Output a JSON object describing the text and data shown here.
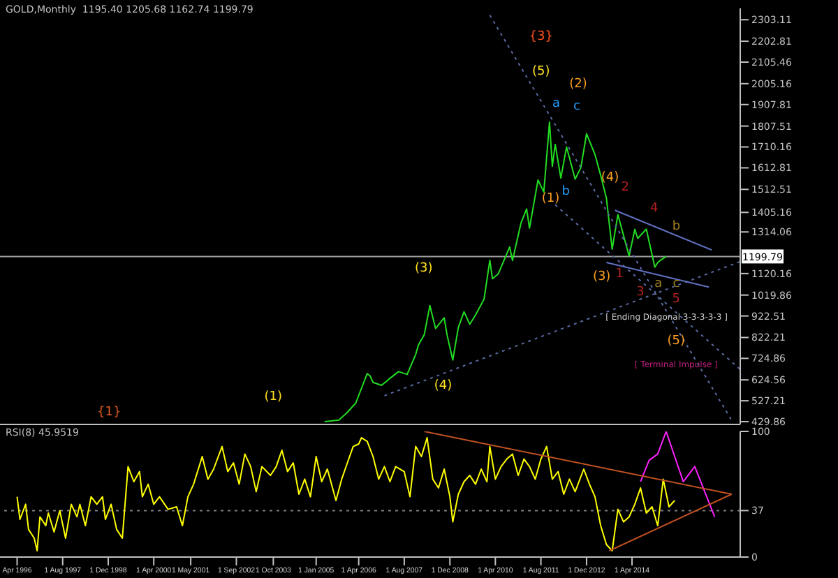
{
  "chart_data": [
    {
      "type": "line",
      "title": "GOLD,Monthly  1195.40 1205.68 1162.74 1199.79",
      "xlim": [
        "1995-10",
        "2017-06"
      ],
      "ylim": [
        417,
        2356
      ],
      "tick_labels": "y",
      "yticks": [
        2303.11,
        2202.81,
        2105.46,
        2005.16,
        1907.81,
        1807.51,
        1710.16,
        1612.81,
        1512.51,
        1405.16,
        1314.06,
        1120.16,
        1019.86,
        922.51,
        822.21,
        724.86,
        624.56,
        527.21,
        429.86
      ],
      "series": [
        {
          "color": "#22dd22",
          "x": [
            "2005-04",
            "2005-09",
            "2005-12",
            "2006-03",
            "2006-07",
            "2006-08",
            "2006-09",
            "2006-12",
            "2007-03",
            "2007-06",
            "2007-09",
            "2007-12",
            "2008-01",
            "2008-03",
            "2008-05",
            "2008-06",
            "2008-07",
            "2008-10",
            "2008-11",
            "2009-01",
            "2009-03",
            "2009-05",
            "2009-07",
            "2009-09",
            "2009-12",
            "2010-02",
            "2010-03",
            "2010-05",
            "2010-09",
            "2010-10",
            "2011-01",
            "2011-03",
            "2011-04",
            "2011-07",
            "2011-09",
            "2011-11",
            "2011-12",
            "2012-01",
            "2012-03",
            "2012-05",
            "2012-08",
            "2012-10",
            "2012-12",
            "2013-03",
            "2013-05",
            "2013-07",
            "2013-09",
            "2013-11",
            "2014-03",
            "2014-05",
            "2014-06",
            "2014-09",
            "2014-12",
            "2015-01",
            "2015-02",
            "2015-04"
          ],
          "values": [
            430,
            437,
            473,
            517,
            654,
            643,
            613,
            599,
            632,
            663,
            650,
            743,
            789,
            834,
            971,
            916,
            864,
            914,
            833,
            717,
            869,
            942,
            884,
            927,
            1001,
            1182,
            1096,
            1118,
            1244,
            1181,
            1357,
            1421,
            1332,
            1556,
            1500,
            1826,
            1620,
            1722,
            1565,
            1710,
            1560,
            1614,
            1772,
            1675,
            1578,
            1472,
            1234,
            1395,
            1202,
            1326,
            1284,
            1327,
            1150,
            1171,
            1183,
            1200
          ]
        },
        {
          "type": "line",
          "color": "#5a6aa0",
          "line_style": "dotted",
          "x": [
            "2007-01",
            "2017-06"
          ],
          "values": [
            551,
            1176
          ]
        },
        {
          "type": "line",
          "color": "#5a6aa0",
          "line_style": "dotted",
          "x": [
            "2010-02",
            "2017-03"
          ],
          "values": [
            2324,
            436
          ]
        },
        {
          "type": "line",
          "color": "#5a6aa0",
          "line_style": "dotted",
          "x": [
            "2012-01",
            "2017-06"
          ],
          "values": [
            1441,
            673
          ]
        },
        {
          "type": "line",
          "color": "#6070c0",
          "line_style": "solid",
          "x": [
            "2013-10",
            "2016-08"
          ],
          "values": [
            1415,
            1230
          ]
        },
        {
          "type": "line",
          "color": "#6070c0",
          "line_style": "solid",
          "x": [
            "2013-07",
            "2016-07"
          ],
          "values": [
            1172,
            1057
          ]
        }
      ],
      "ref_lines": [
        {
          "axis": "y",
          "value": 1199.79,
          "label": "1199.79",
          "color": "#a0a0a0",
          "line_style": "solid"
        }
      ],
      "annotations": [
        "{1}",
        "(1)",
        "(3)",
        "(4)",
        "(5)",
        "{3}",
        "(2)",
        "a",
        "c",
        "b",
        "(1)",
        "(4)",
        "2",
        "4",
        "b",
        "(3)",
        "1",
        "3",
        "a",
        "c",
        "5",
        "[ Ending Diagonal 3-3-3-3-3 ]",
        "(5)",
        "[ Terminal Impulse ]"
      ]
    },
    {
      "type": "line",
      "title": "RSI(8) 45.9519",
      "xlim": [
        "1995-10",
        "2017-06"
      ],
      "ylim": [
        0,
        100
      ],
      "yticks": [
        0,
        37,
        100
      ],
      "xticks": [
        {
          "value": "1996-04",
          "label": "Apr 1996"
        },
        {
          "value": "1997-08",
          "label": "1 Aug 1997"
        },
        {
          "value": "1998-12",
          "label": "1 Dec 1998"
        },
        {
          "value": "2000-04",
          "label": "1 Apr 2000"
        },
        {
          "value": "2001-05",
          "label": "1 May 2001"
        },
        {
          "value": "2002-09",
          "label": "1 Sep 2002"
        },
        {
          "value": "2003-10",
          "label": "1 Oct 2003"
        },
        {
          "value": "2005-01",
          "label": "1 Jan 2005"
        },
        {
          "value": "2006-04",
          "label": "1 Apr 2006"
        },
        {
          "value": "2007-08",
          "label": "1 Aug 2007"
        },
        {
          "value": "2008-12",
          "label": "1 Dec 2008"
        },
        {
          "value": "2010-04",
          "label": "1 Apr 2010"
        },
        {
          "value": "2011-08",
          "label": "1 Aug 2011"
        },
        {
          "value": "2012-12",
          "label": "1 Dec 2012"
        },
        {
          "value": "2014-04",
          "label": "1 Apr 2014"
        }
      ],
      "series": [
        {
          "color": "#ffff00",
          "x": [
            "1996-04",
            "1996-05",
            "1996-07",
            "1996-08",
            "1996-10",
            "1996-11",
            "1996-12",
            "1997-02",
            "1997-03",
            "1997-05",
            "1997-07",
            "1997-09",
            "1997-11",
            "1998-01",
            "1998-02",
            "1998-04",
            "1998-06",
            "1998-08",
            "1998-10",
            "1998-11",
            "1999-01",
            "1999-03",
            "1999-05",
            "1999-07",
            "1999-09",
            "1999-11",
            "1999-12",
            "2000-02",
            "2000-04",
            "2000-06",
            "2000-09",
            "2000-12",
            "2001-02",
            "2001-04",
            "2001-06",
            "2001-09",
            "2001-11",
            "2002-01",
            "2002-04",
            "2002-06",
            "2002-08",
            "2002-10",
            "2002-12",
            "2003-02",
            "2003-04",
            "2003-06",
            "2003-09",
            "2003-11",
            "2004-01",
            "2004-03",
            "2004-05",
            "2004-07",
            "2004-09",
            "2004-11",
            "2005-01",
            "2005-03",
            "2005-05",
            "2005-08",
            "2005-10",
            "2005-12",
            "2006-02",
            "2006-04",
            "2006-05",
            "2006-07",
            "2006-09",
            "2006-11",
            "2007-01",
            "2007-03",
            "2007-05",
            "2007-08",
            "2007-10",
            "2007-12",
            "2008-02",
            "2008-04",
            "2008-06",
            "2008-08",
            "2008-10",
            "2008-12",
            "2009-01",
            "2009-03",
            "2009-05",
            "2009-07",
            "2009-09",
            "2009-11",
            "2010-01",
            "2010-02",
            "2010-04",
            "2010-06",
            "2010-08",
            "2010-10",
            "2010-12",
            "2011-02",
            "2011-04",
            "2011-06",
            "2011-08",
            "2011-10",
            "2011-12",
            "2012-02",
            "2012-04",
            "2012-06",
            "2012-08",
            "2012-11",
            "2013-01",
            "2013-03",
            "2013-05",
            "2013-07",
            "2013-09",
            "2013-11",
            "2014-01",
            "2014-03",
            "2014-05",
            "2014-07",
            "2014-09",
            "2014-11",
            "2015-01",
            "2015-03",
            "2015-05",
            "2015-07"
          ],
          "values": [
            48,
            30,
            42,
            22,
            15,
            5,
            32,
            25,
            35,
            20,
            37,
            15,
            42,
            32,
            42,
            25,
            48,
            42,
            48,
            30,
            42,
            22,
            15,
            72,
            60,
            68,
            48,
            58,
            42,
            48,
            38,
            40,
            25,
            48,
            58,
            80,
            62,
            70,
            88,
            68,
            75,
            58,
            82,
            72,
            52,
            72,
            65,
            72,
            85,
            68,
            75,
            50,
            62,
            48,
            80,
            60,
            70,
            45,
            62,
            75,
            88,
            90,
            95,
            92,
            80,
            62,
            72,
            60,
            72,
            68,
            48,
            88,
            80,
            95,
            62,
            55,
            70,
            48,
            28,
            50,
            60,
            65,
            58,
            70,
            60,
            88,
            62,
            72,
            78,
            82,
            65,
            78,
            72,
            62,
            78,
            88,
            62,
            68,
            50,
            62,
            52,
            70,
            58,
            48,
            25,
            10,
            5,
            38,
            28,
            32,
            42,
            55,
            35,
            40,
            25,
            62,
            40,
            45
          ]
        },
        {
          "type": "line",
          "color": "#ff22ff",
          "x": [
            "2014-07",
            "2014-10",
            "2015-01",
            "2015-04",
            "2015-10",
            "2016-02",
            "2016-09"
          ],
          "values": [
            60,
            77,
            82,
            100,
            60,
            72,
            32
          ]
        },
        {
          "type": "line",
          "color": "#c05020",
          "x": [
            "2008-03",
            "2017-03"
          ],
          "values": [
            100,
            50
          ]
        },
        {
          "type": "line",
          "color": "#c05020",
          "x": [
            "2013-08",
            "2017-03"
          ],
          "values": [
            5,
            50
          ]
        }
      ],
      "ref_lines": [
        {
          "axis": "y",
          "value": 37,
          "color": "#808080",
          "line_style": "dotted"
        }
      ]
    }
  ]
}
